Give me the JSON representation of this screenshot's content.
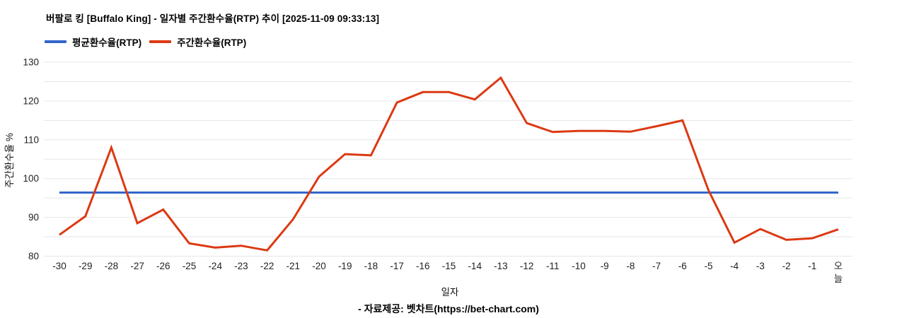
{
  "chart_data": {
    "type": "line",
    "title": "버팔로 킹 [Buffalo King] - 일자별 주간환수율(RTP) 추이 [2025-11-09 09:33:13]",
    "xlabel": "일자",
    "ylabel": "주간환수율 %",
    "ylim": [
      80,
      130
    ],
    "yticks": [
      80,
      90,
      100,
      110,
      120,
      130
    ],
    "minor_grid_step": 5,
    "grid": "horizontal-only",
    "grid_color": "#e6e6e6",
    "legend_position": "top-left",
    "background_color": "#ffffff",
    "categories": [
      "-30",
      "-29",
      "-28",
      "-27",
      "-26",
      "-25",
      "-24",
      "-23",
      "-22",
      "-21",
      "-20",
      "-19",
      "-18",
      "-17",
      "-16",
      "-15",
      "-14",
      "-13",
      "-12",
      "-11",
      "-10",
      "-9",
      "-8",
      "-7",
      "-6",
      "-5",
      "-4",
      "-3",
      "-2",
      "-1",
      "오늘"
    ],
    "series": [
      {
        "name": "평균환수율(RTP)",
        "color": "#3366cc",
        "line_width": 3,
        "values": [
          96.4,
          96.4,
          96.4,
          96.4,
          96.4,
          96.4,
          96.4,
          96.4,
          96.4,
          96.4,
          96.4,
          96.4,
          96.4,
          96.4,
          96.4,
          96.4,
          96.4,
          96.4,
          96.4,
          96.4,
          96.4,
          96.4,
          96.4,
          96.4,
          96.4,
          96.4,
          96.4,
          96.4,
          96.4,
          96.4,
          96.4
        ]
      },
      {
        "name": "주간환수율(RTP)",
        "color": "#dc3912",
        "line_width": 3,
        "values": [
          85.5,
          90.3,
          108,
          88.5,
          92,
          83.3,
          82.2,
          82.7,
          81.5,
          89.5,
          100.5,
          106.3,
          106,
          119.6,
          122.3,
          122.3,
          120.4,
          126,
          114.3,
          112,
          112.3,
          112.3,
          112.1,
          113.5,
          115,
          97,
          83.5,
          87,
          84.2,
          84.6,
          86.9
        ]
      }
    ]
  },
  "footer": {
    "text": "- 자료제공: 벳차트(https://bet-chart.com)"
  }
}
